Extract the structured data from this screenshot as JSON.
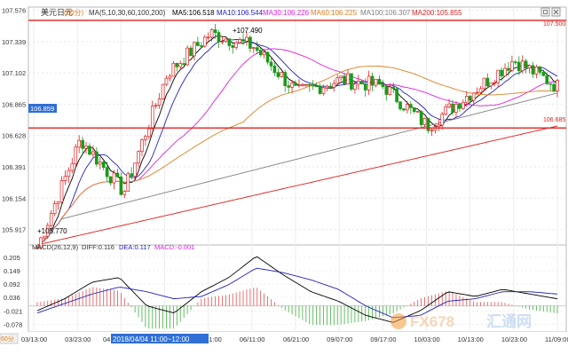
{
  "header": {
    "symbol": "美元日元",
    "period": "(60分)",
    "ma_label": "MA(5,10,30,60,100,200)",
    "ma_values": [
      {
        "text": "MA5:106.518",
        "color": "#000000"
      },
      {
        "text": "MA10:106.544",
        "color": "#2020c0"
      },
      {
        "text": "MA30:106.226",
        "color": "#e020e0"
      },
      {
        "text": "MA60:106.225",
        "color": "#e08020"
      },
      {
        "text": "MA100:106.307",
        "color": "#808080"
      },
      {
        "text": "MA200:105.855",
        "color": "#e02020"
      }
    ]
  },
  "macd_header": {
    "label": "MACD(26,12,9)",
    "diff": "DIFF:0.116",
    "dea": "DEA:0.117",
    "macd": "MACD:-0.001"
  },
  "watermark": {
    "brand": "FX678",
    "cn": "汇通网"
  },
  "left_tag": "60分",
  "chart_data": {
    "type": "candlestick",
    "ylim": [
      105.8,
      107.6
    ],
    "yticks": [
      "107.576",
      "107.339",
      "107.102",
      "106.865",
      "106.628",
      "106.391",
      "106.154",
      "105.917"
    ],
    "xticks": [
      "03/13:00",
      "03/23:00",
      "04",
      "05/15:00",
      "06/01:00",
      "06/11:00",
      "06/21:00",
      "09/07:00",
      "09/17:00",
      "10/03:00",
      "10/13:00",
      "10/23:00",
      "11/09:00"
    ],
    "cursor_label": "2018/04/04 11:00~12:00",
    "ohlc_samples": [
      {
        "time": "03/13:00",
        "close": 105.78
      },
      {
        "time": "03/23:00",
        "close": 106.6
      },
      {
        "time": "04",
        "close": 106.2
      },
      {
        "time": "05/15:00",
        "close": 107.1
      },
      {
        "time": "06/01:00",
        "close": 107.4
      },
      {
        "time": "06/11:00",
        "close": 107.3
      },
      {
        "time": "06/21:00",
        "close": 106.95
      },
      {
        "time": "09/07:00",
        "close": 107.05
      },
      {
        "time": "09/17:00",
        "close": 107.0
      },
      {
        "time": "10/03:00",
        "close": 106.7
      },
      {
        "time": "10/13:00",
        "close": 106.95
      },
      {
        "time": "10/23:00",
        "close": 107.2
      },
      {
        "time": "11/09:00",
        "close": 107.0
      }
    ],
    "horizontal_lines": [
      {
        "value": 107.5,
        "label": "107.500",
        "color": "#e02020"
      },
      {
        "value": 106.685,
        "label": "106.685",
        "color": "#e02020"
      }
    ],
    "price_tag": "106.859",
    "annotations": [
      {
        "text": "+107.490",
        "time": "06/01:00",
        "value": 107.49
      },
      {
        "text": "+105.770",
        "time": "03/13:00",
        "value": 105.77
      }
    ],
    "macd": {
      "ylim": [
        -0.11,
        0.22
      ],
      "yticks": [
        "0.205",
        "0.149",
        "0.092",
        "0.036",
        "-0.021",
        "-0.078"
      ],
      "diff_points": [
        -0.02,
        0.03,
        0.1,
        0.12,
        0.0,
        -0.03,
        0.06,
        0.12,
        0.21,
        0.13,
        0.06,
        0.02,
        -0.04,
        -0.07,
        -0.02,
        0.06,
        0.04,
        0.07,
        0.05,
        0.03
      ],
      "dea_points": [
        -0.03,
        0.01,
        0.05,
        0.08,
        0.06,
        0.03,
        0.04,
        0.09,
        0.16,
        0.14,
        0.11,
        0.07,
        0.0,
        -0.05,
        -0.04,
        0.02,
        0.03,
        0.06,
        0.06,
        0.05
      ]
    }
  }
}
